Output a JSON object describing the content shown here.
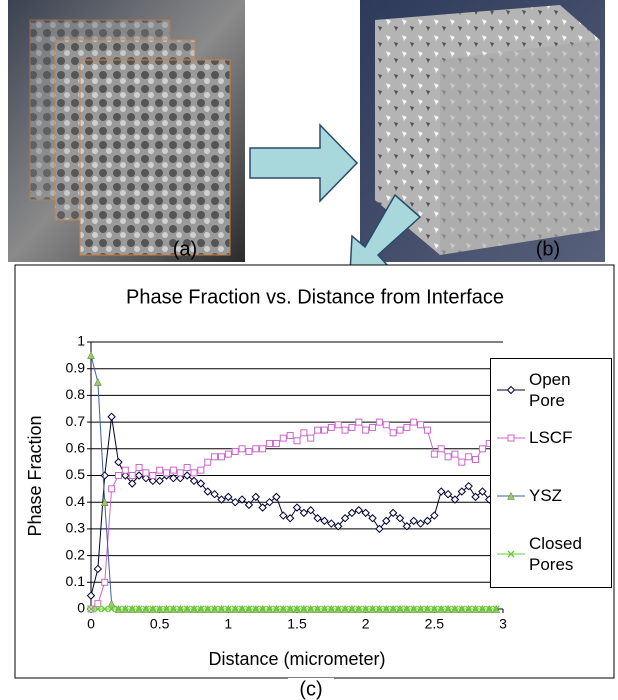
{
  "panel_labels": [
    "(a)",
    "(b)",
    "(c)"
  ],
  "chart_data": {
    "type": "line",
    "title": "Phase Fraction vs. Distance from Interface",
    "x_label": "Distance (micrometer)",
    "y_label": "Phase Fraction",
    "x": [
      0,
      0.05,
      0.1,
      0.15,
      0.2,
      0.25,
      0.3,
      0.35,
      0.4,
      0.45,
      0.5,
      0.55,
      0.6,
      0.65,
      0.7,
      0.75,
      0.8,
      0.85,
      0.9,
      0.95,
      1,
      1.05,
      1.1,
      1.15,
      1.2,
      1.25,
      1.3,
      1.35,
      1.4,
      1.45,
      1.5,
      1.55,
      1.6,
      1.65,
      1.7,
      1.75,
      1.8,
      1.85,
      1.9,
      1.95,
      2,
      2.05,
      2.1,
      2.15,
      2.2,
      2.25,
      2.3,
      2.35,
      2.4,
      2.45,
      2.5,
      2.55,
      2.6,
      2.65,
      2.7,
      2.75,
      2.8,
      2.85,
      2.9,
      2.95
    ],
    "series": [
      {
        "name": "Open Pore",
        "color": "#000033",
        "marker": "diamond",
        "marker_color": "#000033",
        "values": [
          0.05,
          0.15,
          0.5,
          0.72,
          0.55,
          0.5,
          0.47,
          0.5,
          0.49,
          0.48,
          0.48,
          0.5,
          0.49,
          0.49,
          0.5,
          0.48,
          0.47,
          0.44,
          0.43,
          0.41,
          0.42,
          0.4,
          0.41,
          0.39,
          0.42,
          0.38,
          0.4,
          0.42,
          0.35,
          0.34,
          0.38,
          0.36,
          0.37,
          0.34,
          0.33,
          0.32,
          0.31,
          0.34,
          0.36,
          0.37,
          0.36,
          0.34,
          0.3,
          0.33,
          0.36,
          0.34,
          0.31,
          0.33,
          0.32,
          0.33,
          0.35,
          0.44,
          0.43,
          0.41,
          0.44,
          0.46,
          0.42,
          0.44,
          0.41,
          0.33
        ]
      },
      {
        "name": "LSCF",
        "color": "#cc66cc",
        "marker": "square",
        "marker_color": "#cc66cc",
        "values": [
          0,
          0.02,
          0.1,
          0.45,
          0.5,
          0.52,
          0.5,
          0.53,
          0.51,
          0.5,
          0.52,
          0.51,
          0.52,
          0.51,
          0.53,
          0.51,
          0.52,
          0.55,
          0.57,
          0.57,
          0.58,
          0.59,
          0.6,
          0.59,
          0.6,
          0.6,
          0.62,
          0.62,
          0.64,
          0.65,
          0.63,
          0.66,
          0.64,
          0.67,
          0.67,
          0.68,
          0.69,
          0.67,
          0.68,
          0.7,
          0.67,
          0.68,
          0.7,
          0.69,
          0.66,
          0.67,
          0.68,
          0.7,
          0.69,
          0.67,
          0.58,
          0.6,
          0.57,
          0.58,
          0.55,
          0.57,
          0.56,
          0.6,
          0.62,
          0.68
        ]
      },
      {
        "name": "YSZ",
        "color": "#3a5fa8",
        "marker": "triangle",
        "marker_color": "#99cc66",
        "values": [
          0.95,
          0.85,
          0.4,
          0.02,
          0,
          0,
          0,
          0,
          0,
          0,
          0,
          0,
          0,
          0,
          0,
          0,
          0,
          0,
          0,
          0,
          0,
          0,
          0,
          0,
          0,
          0,
          0,
          0,
          0,
          0,
          0,
          0,
          0,
          0,
          0,
          0,
          0,
          0,
          0,
          0,
          0,
          0,
          0,
          0,
          0,
          0,
          0,
          0,
          0,
          0,
          0,
          0,
          0,
          0,
          0,
          0,
          0,
          0,
          0,
          0
        ]
      },
      {
        "name": "Closed Pores",
        "color": "#66cc33",
        "marker": "x",
        "marker_color": "#66cc33",
        "values": [
          0,
          0,
          0,
          0,
          0,
          0,
          0,
          0,
          0,
          0,
          0,
          0,
          0,
          0,
          0,
          0,
          0,
          0,
          0,
          0,
          0,
          0,
          0,
          0,
          0,
          0,
          0,
          0,
          0,
          0,
          0,
          0,
          0,
          0,
          0,
          0,
          0,
          0,
          0,
          0,
          0,
          0,
          0,
          0,
          0,
          0,
          0,
          0,
          0,
          0,
          0,
          0,
          0,
          0,
          0,
          0,
          0,
          0,
          0,
          0
        ]
      }
    ],
    "xlim": [
      0,
      3
    ],
    "ylim": [
      0,
      1
    ],
    "xticks": [
      0,
      0.5,
      1,
      1.5,
      2,
      2.5,
      3
    ],
    "yticks": [
      0,
      0.1,
      0.2,
      0.3,
      0.4,
      0.5,
      0.6,
      0.7,
      0.8,
      0.9,
      1
    ],
    "grid": true
  }
}
